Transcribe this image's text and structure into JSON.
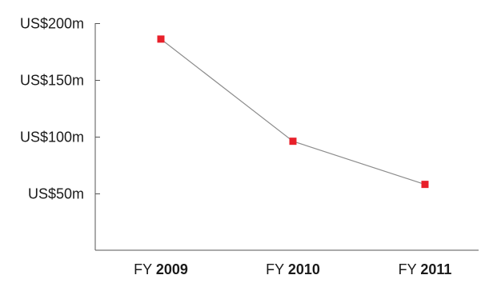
{
  "chart_data": {
    "type": "line",
    "title": "",
    "xlabel": "",
    "ylabel": "",
    "categories": [
      {
        "prefix": "FY",
        "year": "2009"
      },
      {
        "prefix": "FY",
        "year": "2010"
      },
      {
        "prefix": "FY",
        "year": "2011"
      }
    ],
    "series": [
      {
        "values": [
          186,
          96,
          58
        ]
      }
    ],
    "y_ticks": [
      {
        "value": 50,
        "label": "US$50m"
      },
      {
        "value": 100,
        "label": "US$100m"
      },
      {
        "value": 150,
        "label": "US$150m"
      },
      {
        "value": 200,
        "label": "US$200m"
      }
    ],
    "ylim": [
      0,
      200
    ],
    "grid": false,
    "legend": "none",
    "colors": {
      "line": "#8c8c8c",
      "marker": "#e8202a",
      "axis": "#555555",
      "text": "#1a1a1a"
    }
  }
}
